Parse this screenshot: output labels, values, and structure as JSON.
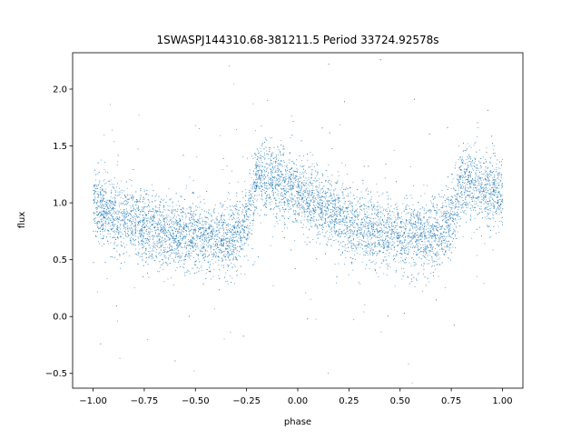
{
  "chart_data": {
    "type": "scatter",
    "title": "1SWASPJ144310.68-381211.5 Period 33724.92578s",
    "xlabel": "phase",
    "ylabel": "flux",
    "xlim": [
      -1.1,
      1.1
    ],
    "ylim": [
      -0.63,
      2.32
    ],
    "x_ticks": [
      -1.0,
      -0.75,
      -0.5,
      -0.25,
      0.0,
      0.25,
      0.5,
      0.75,
      1.0
    ],
    "x_tick_labels": [
      "−1.00",
      "−0.75",
      "−0.50",
      "−0.25",
      "0.00",
      "0.25",
      "0.50",
      "0.75",
      "1.00"
    ],
    "y_ticks": [
      -0.5,
      0.0,
      0.5,
      1.0,
      1.5,
      2.0
    ],
    "y_tick_labels": [
      "−0.5",
      "0.0",
      "0.5",
      "1.0",
      "1.5",
      "2.0"
    ],
    "grid": false,
    "marker_color": "#1f77b4",
    "series": [
      {
        "phase_curve": [
          [
            -1.0,
            0.98
          ],
          [
            -0.9,
            0.9
          ],
          [
            -0.8,
            0.83
          ],
          [
            -0.7,
            0.77
          ],
          [
            -0.6,
            0.73
          ],
          [
            -0.5,
            0.7
          ],
          [
            -0.4,
            0.69
          ],
          [
            -0.3,
            0.72
          ],
          [
            -0.25,
            0.82
          ],
          [
            -0.2,
            1.25
          ],
          [
            -0.1,
            1.2
          ],
          [
            0.0,
            1.07
          ],
          [
            0.1,
            0.97
          ],
          [
            0.2,
            0.88
          ],
          [
            0.3,
            0.8
          ],
          [
            0.4,
            0.74
          ],
          [
            0.5,
            0.7
          ],
          [
            0.6,
            0.69
          ],
          [
            0.7,
            0.72
          ],
          [
            0.75,
            0.85
          ],
          [
            0.8,
            1.2
          ],
          [
            0.9,
            1.15
          ],
          [
            1.0,
            1.08
          ]
        ]
      }
    ]
  }
}
